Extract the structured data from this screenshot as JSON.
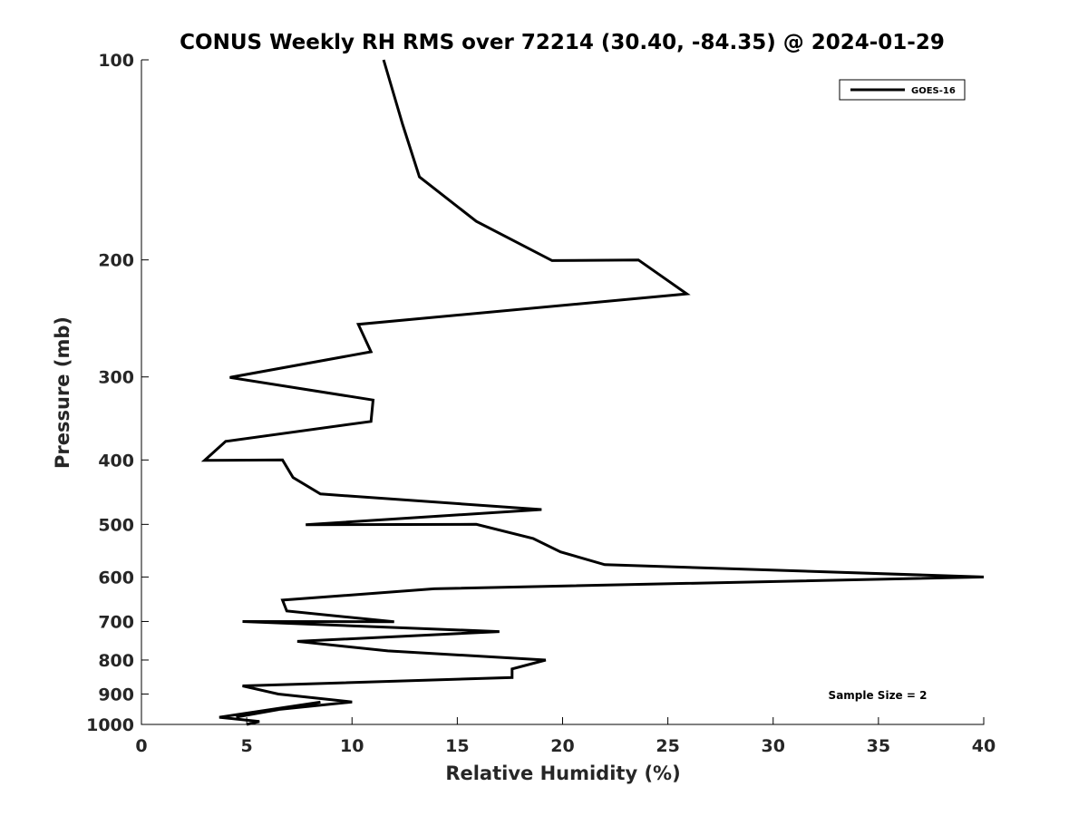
{
  "chart_data": {
    "type": "line",
    "title": "CONUS Weekly RH RMS over 72214 (30.40, -84.35) @ 2024-01-29",
    "xlabel": "Relative Humidity (%)",
    "ylabel": "Pressure (mb)",
    "xlim": [
      0,
      40
    ],
    "ylim": [
      100,
      1000
    ],
    "y_scale": "log",
    "y_reversed": true,
    "grid": false,
    "x_ticks": [
      0,
      5,
      10,
      15,
      20,
      25,
      30,
      35,
      40
    ],
    "x_tick_labels": [
      "0",
      "5",
      "10",
      "15",
      "20",
      "25",
      "30",
      "35",
      "40"
    ],
    "y_ticks": [
      100,
      200,
      300,
      400,
      500,
      600,
      700,
      800,
      900,
      1000
    ],
    "y_tick_labels": [
      "100",
      "200",
      "300",
      "400",
      "500",
      "600",
      "700",
      "800",
      "900",
      "1000"
    ],
    "legend": {
      "position": "top-right",
      "entries": [
        "GOES-16"
      ]
    },
    "annotation": "Sample Size = 2",
    "series": [
      {
        "name": "GOES-16",
        "color": "#000000",
        "points": [
          [
            11.5,
            100
          ],
          [
            12.4,
            125
          ],
          [
            13.2,
            150
          ],
          [
            15.9,
            175
          ],
          [
            19.5,
            200.5
          ],
          [
            23.6,
            200
          ],
          [
            25.9,
            225
          ],
          [
            10.3,
            250
          ],
          [
            10.9,
            275
          ],
          [
            4.2,
            300.5
          ],
          [
            11.0,
            325
          ],
          [
            10.9,
            350
          ],
          [
            4.0,
            375
          ],
          [
            3.0,
            400.5
          ],
          [
            6.7,
            400
          ],
          [
            7.2,
            425
          ],
          [
            8.5,
            450
          ],
          [
            19.0,
            475
          ],
          [
            7.8,
            500.5
          ],
          [
            15.9,
            500
          ],
          [
            18.6,
            525
          ],
          [
            19.9,
            550
          ],
          [
            22.0,
            575
          ],
          [
            40.0,
            600
          ],
          [
            13.9,
            625
          ],
          [
            6.7,
            650
          ],
          [
            6.9,
            675
          ],
          [
            12.0,
            700.5
          ],
          [
            4.8,
            700
          ],
          [
            17.0,
            725
          ],
          [
            7.4,
            750
          ],
          [
            11.7,
            775
          ],
          [
            19.2,
            800
          ],
          [
            17.6,
            825
          ],
          [
            17.6,
            850
          ],
          [
            4.8,
            875
          ],
          [
            6.5,
            900
          ],
          [
            10.0,
            925
          ],
          [
            6.4,
            950
          ],
          [
            4.5,
            975
          ],
          [
            8.5,
            925.5
          ],
          [
            3.7,
            975.5
          ],
          [
            5.6,
            990
          ],
          [
            5.0,
            1000
          ]
        ]
      }
    ]
  }
}
